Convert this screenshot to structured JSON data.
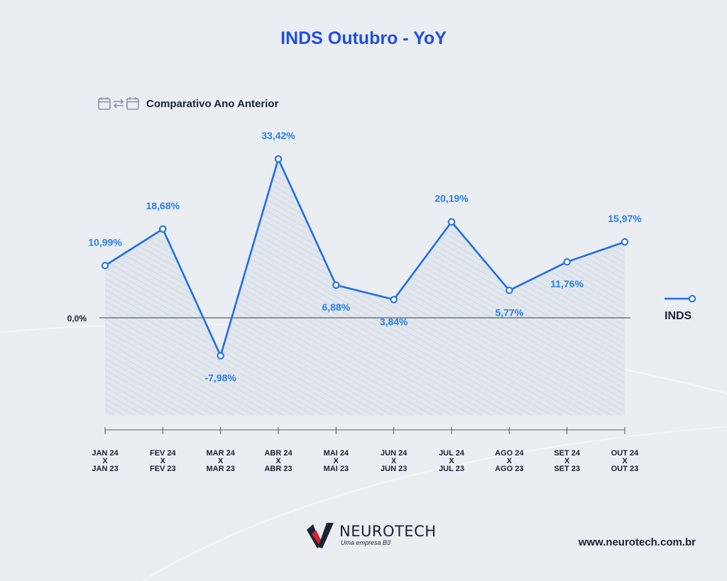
{
  "header": {
    "title": "INDS Outubro - YoY",
    "subtitle": "Comparativo Ano Anterior",
    "subtitle_icon": "calendar-compare-icon"
  },
  "chart_data": {
    "type": "area",
    "categories": [
      [
        "JAN 24",
        "X",
        "JAN 23"
      ],
      [
        "FEV 24",
        "X",
        "FEV 23"
      ],
      [
        "MAR 24",
        "X",
        "MAR 23"
      ],
      [
        "ABR 24",
        "X",
        "ABR 23"
      ],
      [
        "MAI 24",
        "X",
        "MAI 23"
      ],
      [
        "JUN 24",
        "X",
        "JUN 23"
      ],
      [
        "JUL 24",
        "X",
        "JUL 23"
      ],
      [
        "AGO 24",
        "X",
        "AGO 23"
      ],
      [
        "SET 24",
        "X",
        "SET 23"
      ],
      [
        "OUT 24",
        "X",
        "OUT 23"
      ]
    ],
    "series": [
      {
        "name": "INDS",
        "values": [
          10.99,
          18.68,
          -7.98,
          33.42,
          6.88,
          3.84,
          20.19,
          5.77,
          11.76,
          15.97
        ],
        "labels": [
          "10,99%",
          "18,68%",
          "-7,98%",
          "33,42%",
          "6,88%",
          "3,84%",
          "20,19%",
          "5,77%",
          "11,76%",
          "15,97%"
        ],
        "label_placement": [
          "above",
          "above",
          "below",
          "above",
          "below",
          "below",
          "above",
          "below",
          "below",
          "above"
        ],
        "color": "#1f6fe8"
      }
    ],
    "baseline_label": "0,0%",
    "ylim": [
      -22,
      38
    ],
    "legend": {
      "placement": "right",
      "label": "INDS"
    },
    "grid": false
  },
  "footer": {
    "brand": "NEUROTECH",
    "tagline": "Uma empresa B3",
    "website": "www.neurotech.com.br",
    "logo_icon": "neurotech-logo-icon"
  },
  "colors": {
    "background": "#eaedf2",
    "title": "#1f4fe0",
    "line": "#1f6fe8",
    "label": "#2a7ff0",
    "text": "#1b2230"
  }
}
